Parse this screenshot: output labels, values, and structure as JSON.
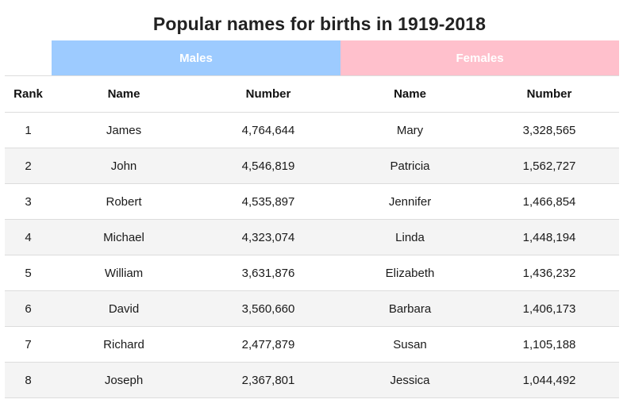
{
  "title": "Popular names for births in 1919-2018",
  "groups": {
    "males": "Males",
    "females": "Females"
  },
  "columns": {
    "rank": "Rank",
    "male_name": "Name",
    "male_number": "Number",
    "female_name": "Name",
    "female_number": "Number"
  },
  "colors": {
    "males_header": "#9dcbff",
    "females_header": "#ffc0cc",
    "row_alt": "#f4f4f4"
  },
  "rows": [
    {
      "rank": "1",
      "male_name": "James",
      "male_number": "4,764,644",
      "female_name": "Mary",
      "female_number": "3,328,565"
    },
    {
      "rank": "2",
      "male_name": "John",
      "male_number": "4,546,819",
      "female_name": "Patricia",
      "female_number": "1,562,727"
    },
    {
      "rank": "3",
      "male_name": "Robert",
      "male_number": "4,535,897",
      "female_name": "Jennifer",
      "female_number": "1,466,854"
    },
    {
      "rank": "4",
      "male_name": "Michael",
      "male_number": "4,323,074",
      "female_name": "Linda",
      "female_number": "1,448,194"
    },
    {
      "rank": "5",
      "male_name": "William",
      "male_number": "3,631,876",
      "female_name": "Elizabeth",
      "female_number": "1,436,232"
    },
    {
      "rank": "6",
      "male_name": "David",
      "male_number": "3,560,660",
      "female_name": "Barbara",
      "female_number": "1,406,173"
    },
    {
      "rank": "7",
      "male_name": "Richard",
      "male_number": "2,477,879",
      "female_name": "Susan",
      "female_number": "1,105,188"
    },
    {
      "rank": "8",
      "male_name": "Joseph",
      "male_number": "2,367,801",
      "female_name": "Jessica",
      "female_number": "1,044,492"
    }
  ]
}
